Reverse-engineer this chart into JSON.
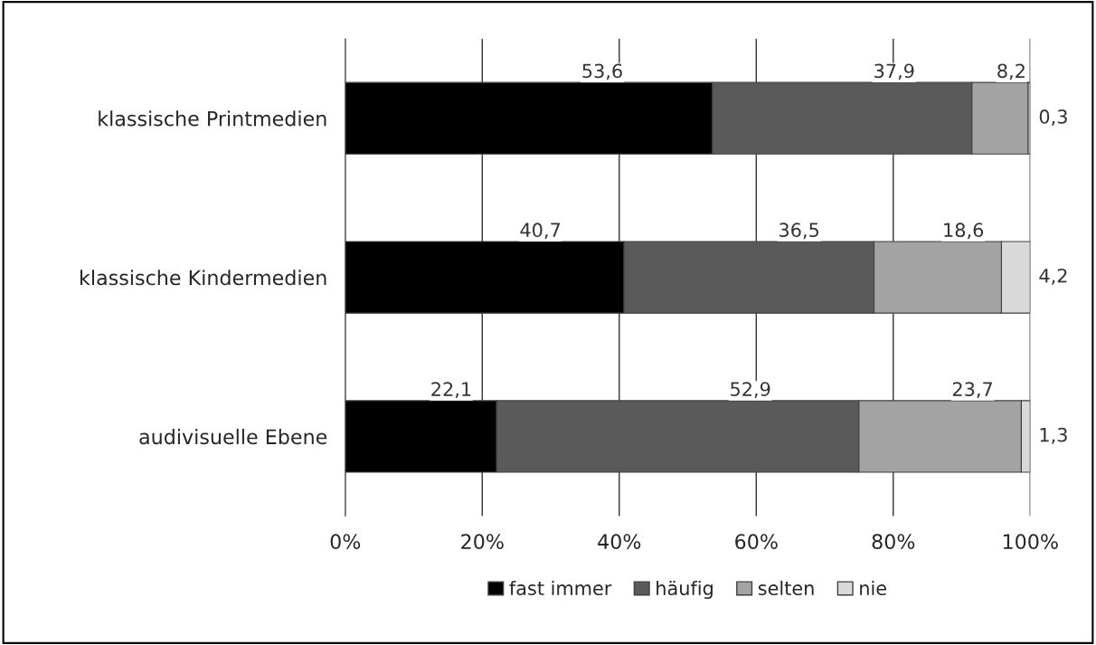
{
  "chart_data": {
    "type": "bar",
    "orientation": "horizontal",
    "stacked": true,
    "categories": [
      "klassische Printmedien",
      "klassische Kindermedien",
      "audivisuelle Ebene"
    ],
    "series": [
      {
        "name": "fast immer",
        "color": "#000000",
        "values": [
          53.6,
          40.7,
          22.1
        ],
        "value_labels": [
          "53,6",
          "40,7",
          "22,1"
        ]
      },
      {
        "name": "häufig",
        "color": "#5a5a5a",
        "values": [
          37.9,
          36.5,
          52.9
        ],
        "value_labels": [
          "37,9",
          "36,5",
          "52,9"
        ]
      },
      {
        "name": "selten",
        "color": "#a3a3a3",
        "values": [
          8.2,
          18.6,
          23.7
        ],
        "value_labels": [
          "8,2",
          "18,6",
          "23,7"
        ]
      },
      {
        "name": "nie",
        "color": "#d9d9d9",
        "values": [
          0.3,
          4.2,
          1.3
        ],
        "value_labels": [
          "0,3",
          "4,2",
          "1,3"
        ]
      }
    ],
    "xlim": [
      0,
      100
    ],
    "xticks": [
      {
        "value": 0,
        "label": "0%"
      },
      {
        "value": 20,
        "label": "20%"
      },
      {
        "value": 40,
        "label": "40%"
      },
      {
        "value": 60,
        "label": "60%"
      },
      {
        "value": 80,
        "label": "80%"
      },
      {
        "value": 100,
        "label": "100%"
      }
    ],
    "grid": "x",
    "legend": "bottom"
  }
}
